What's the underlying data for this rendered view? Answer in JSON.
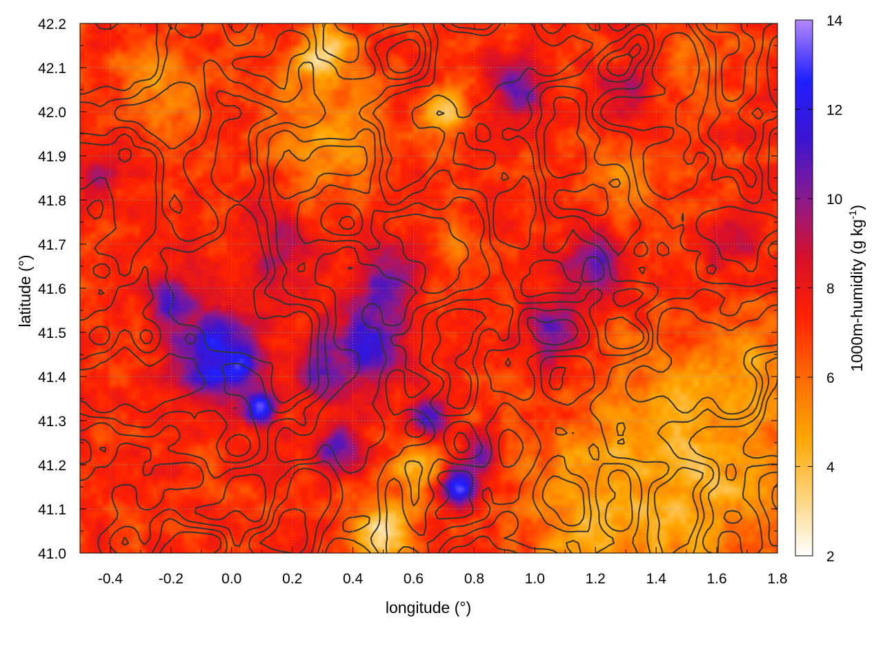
{
  "chart_data": {
    "type": "heatmap",
    "title": "",
    "xlabel": "longitude (°)",
    "ylabel": "latitude (°)",
    "colorbar_label": "1000m-humidity (g kg",
    "colorbar_label_sup": "-1",
    "colorbar_label_end": ")",
    "xlim": [
      -0.5,
      1.8
    ],
    "ylim": [
      41.0,
      42.2
    ],
    "clim": [
      2,
      14
    ],
    "x_ticks": [
      -0.4,
      -0.2,
      0.0,
      0.2,
      0.4,
      0.6,
      0.8,
      1.0,
      1.2,
      1.4,
      1.6,
      1.8
    ],
    "x_tick_labels": [
      "-0.4",
      "-0.2",
      "0.0",
      "0.2",
      "0.4",
      "0.6",
      "0.8",
      "1.0",
      "1.2",
      "1.4",
      "1.6",
      "1.8"
    ],
    "y_ticks": [
      41.0,
      41.1,
      41.2,
      41.3,
      41.4,
      41.5,
      41.6,
      41.7,
      41.8,
      41.9,
      42.0,
      42.1,
      42.2
    ],
    "y_tick_labels": [
      "41.0",
      "41.1",
      "41.2",
      "41.3",
      "41.4",
      "41.5",
      "41.6",
      "41.7",
      "41.8",
      "41.9",
      "42.0",
      "42.1",
      "42.2"
    ],
    "colorbar_ticks": [
      2,
      4,
      6,
      8,
      10,
      12,
      14
    ],
    "colorbar_tick_labels": [
      "2",
      "4",
      "6",
      "8",
      "10",
      "12",
      "14"
    ],
    "colormap": [
      "#ffffff",
      "#ffd37a",
      "#ffa500",
      "#ff6a00",
      "#ff2200",
      "#d8102a",
      "#8a1a8e",
      "#3c14d0",
      "#2020ff",
      "#b488ff"
    ],
    "grid": true,
    "contours": "terrain elevation contour lines (dark gray)",
    "contour_color": "#333333",
    "fields": {
      "background_humidity": 7.2,
      "features": [
        {
          "lon": -0.05,
          "lat": 41.45,
          "radius_deg": 0.13,
          "humidity": 12.6
        },
        {
          "lon": 0.02,
          "lat": 41.42,
          "radius_deg": 0.05,
          "humidity": 13.5
        },
        {
          "lon": 0.1,
          "lat": 41.33,
          "radius_deg": 0.05,
          "humidity": 13.8
        },
        {
          "lon": -0.2,
          "lat": 41.56,
          "radius_deg": 0.07,
          "humidity": 11.5
        },
        {
          "lon": 0.45,
          "lat": 41.48,
          "radius_deg": 0.12,
          "humidity": 11.6
        },
        {
          "lon": 0.3,
          "lat": 41.42,
          "radius_deg": 0.08,
          "humidity": 11.0
        },
        {
          "lon": 0.5,
          "lat": 41.62,
          "radius_deg": 0.1,
          "humidity": 10.5
        },
        {
          "lon": 0.35,
          "lat": 41.24,
          "radius_deg": 0.07,
          "humidity": 11.2
        },
        {
          "lon": 0.65,
          "lat": 41.3,
          "radius_deg": 0.07,
          "humidity": 11.8
        },
        {
          "lon": 0.75,
          "lat": 41.15,
          "radius_deg": 0.06,
          "humidity": 12.6
        },
        {
          "lon": 0.82,
          "lat": 41.22,
          "radius_deg": 0.05,
          "humidity": 11.0
        },
        {
          "lon": 1.2,
          "lat": 41.66,
          "radius_deg": 0.1,
          "humidity": 10.8
        },
        {
          "lon": 1.05,
          "lat": 41.5,
          "radius_deg": 0.1,
          "humidity": 10.2
        },
        {
          "lon": 0.95,
          "lat": 42.05,
          "radius_deg": 0.09,
          "humidity": 10.6
        },
        {
          "lon": 1.3,
          "lat": 42.04,
          "radius_deg": 0.08,
          "humidity": 9.5
        },
        {
          "lon": 1.65,
          "lat": 41.7,
          "radius_deg": 0.08,
          "humidity": 9.0
        },
        {
          "lon": -0.45,
          "lat": 41.85,
          "radius_deg": 0.08,
          "humidity": 9.6
        },
        {
          "lon": 0.15,
          "lat": 41.7,
          "radius_deg": 0.14,
          "humidity": 9.2
        },
        {
          "lon": 0.3,
          "lat": 42.12,
          "radius_deg": 0.09,
          "humidity": 2.6
        },
        {
          "lon": 0.7,
          "lat": 42.0,
          "radius_deg": 0.07,
          "humidity": 4.0
        },
        {
          "lon": 0.5,
          "lat": 41.05,
          "radius_deg": 0.1,
          "humidity": 3.2
        },
        {
          "lon": 0.6,
          "lat": 41.2,
          "radius_deg": 0.08,
          "humidity": 4.2
        },
        {
          "lon": 1.5,
          "lat": 41.2,
          "radius_deg": 0.32,
          "humidity": 4.2
        },
        {
          "lon": 1.2,
          "lat": 41.08,
          "radius_deg": 0.22,
          "humidity": 4.4
        },
        {
          "lon": 1.7,
          "lat": 41.4,
          "radius_deg": 0.14,
          "humidity": 4.8
        },
        {
          "lon": 0.3,
          "lat": 41.95,
          "radius_deg": 0.18,
          "humidity": 5.0
        },
        {
          "lon": 1.3,
          "lat": 41.85,
          "radius_deg": 0.12,
          "humidity": 5.5
        },
        {
          "lon": 0.75,
          "lat": 41.7,
          "radius_deg": 0.08,
          "humidity": 5.5
        },
        {
          "lon": -0.25,
          "lat": 42.05,
          "radius_deg": 0.14,
          "humidity": 5.3
        },
        {
          "lon": 1.55,
          "lat": 42.1,
          "radius_deg": 0.12,
          "humidity": 6.0
        }
      ]
    }
  }
}
